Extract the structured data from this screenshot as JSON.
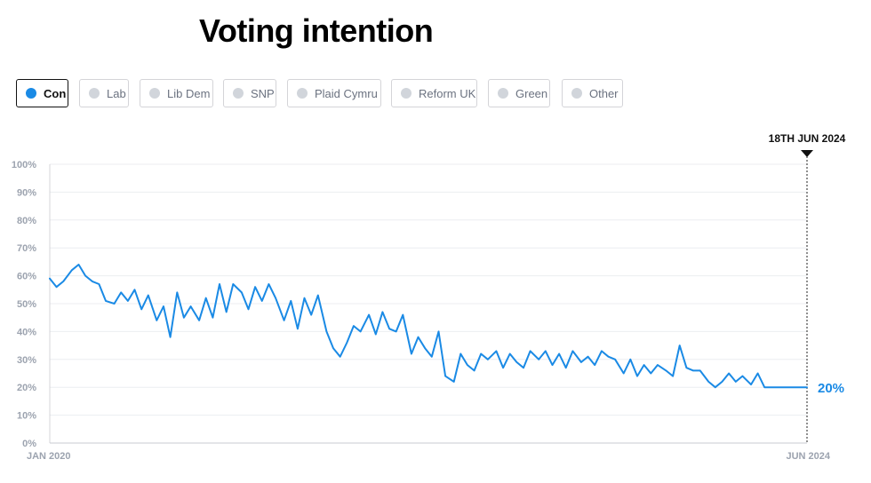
{
  "title": "Voting intention",
  "legend": [
    {
      "label": "Con",
      "active": true
    },
    {
      "label": "Lab",
      "active": false
    },
    {
      "label": "Lib Dem",
      "active": false
    },
    {
      "label": "SNP",
      "active": false
    },
    {
      "label": "Plaid Cymru",
      "active": false
    },
    {
      "label": "Reform UK",
      "active": false
    },
    {
      "label": "Green",
      "active": false
    },
    {
      "label": "Other",
      "active": false
    }
  ],
  "colors": {
    "con": "#1a8ae5",
    "axis_text": "#9ca3af",
    "gridline": "#eceef1",
    "inactive_dot": "#d1d5db"
  },
  "marker": {
    "label": "18TH JUN 2024"
  },
  "end_label": "20%",
  "chart_data": {
    "type": "line",
    "title": "Voting intention",
    "xlabel": "",
    "ylabel": "",
    "x_range": [
      "JAN 2020",
      "JUN 2024"
    ],
    "x_tick_labels": [
      "JAN 2020",
      "JUN 2024"
    ],
    "y_tick_labels": [
      "0%",
      "10%",
      "20%",
      "30%",
      "40%",
      "50%",
      "60%",
      "70%",
      "80%",
      "90%",
      "100%"
    ],
    "ylim": [
      0,
      100
    ],
    "grid": true,
    "series": [
      {
        "name": "Con",
        "x": [
          2020.0,
          2020.04,
          2020.08,
          2020.13,
          2020.17,
          2020.21,
          2020.25,
          2020.29,
          2020.33,
          2020.38,
          2020.42,
          2020.46,
          2020.5,
          2020.54,
          2020.58,
          2020.63,
          2020.67,
          2020.71,
          2020.75,
          2020.79,
          2020.83,
          2020.88,
          2020.92,
          2020.96,
          2021.0,
          2021.04,
          2021.08,
          2021.13,
          2021.17,
          2021.21,
          2021.25,
          2021.29,
          2021.33,
          2021.38,
          2021.42,
          2021.46,
          2021.5,
          2021.54,
          2021.58,
          2021.63,
          2021.67,
          2021.71,
          2021.75,
          2021.79,
          2021.83,
          2021.88,
          2021.92,
          2021.96,
          2022.0,
          2022.04,
          2022.08,
          2022.13,
          2022.17,
          2022.21,
          2022.25,
          2022.29,
          2022.33,
          2022.38,
          2022.42,
          2022.46,
          2022.5,
          2022.54,
          2022.58,
          2022.63,
          2022.67,
          2022.71,
          2022.75,
          2022.79,
          2022.83,
          2022.88,
          2022.92,
          2022.96,
          2023.0,
          2023.04,
          2023.08,
          2023.13,
          2023.17,
          2023.21,
          2023.25,
          2023.29,
          2023.33,
          2023.38,
          2023.42,
          2023.46,
          2023.5,
          2023.54,
          2023.58,
          2023.63,
          2023.67,
          2023.71,
          2023.75,
          2023.79,
          2023.83,
          2023.88,
          2023.92,
          2023.96,
          2024.0,
          2024.04,
          2024.08,
          2024.13,
          2024.17,
          2024.21,
          2024.25,
          2024.29,
          2024.33,
          2024.38,
          2024.42,
          2024.46
        ],
        "values": [
          59,
          56,
          58,
          62,
          64,
          60,
          58,
          57,
          51,
          50,
          54,
          51,
          55,
          48,
          53,
          44,
          49,
          38,
          54,
          45,
          49,
          44,
          52,
          45,
          57,
          47,
          57,
          54,
          48,
          56,
          51,
          57,
          52,
          44,
          51,
          41,
          52,
          46,
          53,
          40,
          34,
          31,
          36,
          42,
          40,
          46,
          39,
          47,
          41,
          40,
          46,
          32,
          38,
          34,
          31,
          40,
          24,
          22,
          32,
          28,
          26,
          32,
          30,
          33,
          27,
          32,
          29,
          27,
          33,
          30,
          33,
          28,
          32,
          27,
          33,
          29,
          31,
          28,
          33,
          31,
          30,
          25,
          30,
          24,
          28,
          25,
          28,
          26,
          24,
          35,
          27,
          26,
          26,
          22,
          20,
          22,
          25,
          22,
          24,
          21,
          25,
          20,
          20,
          20,
          20,
          20,
          20,
          20
        ]
      }
    ]
  }
}
